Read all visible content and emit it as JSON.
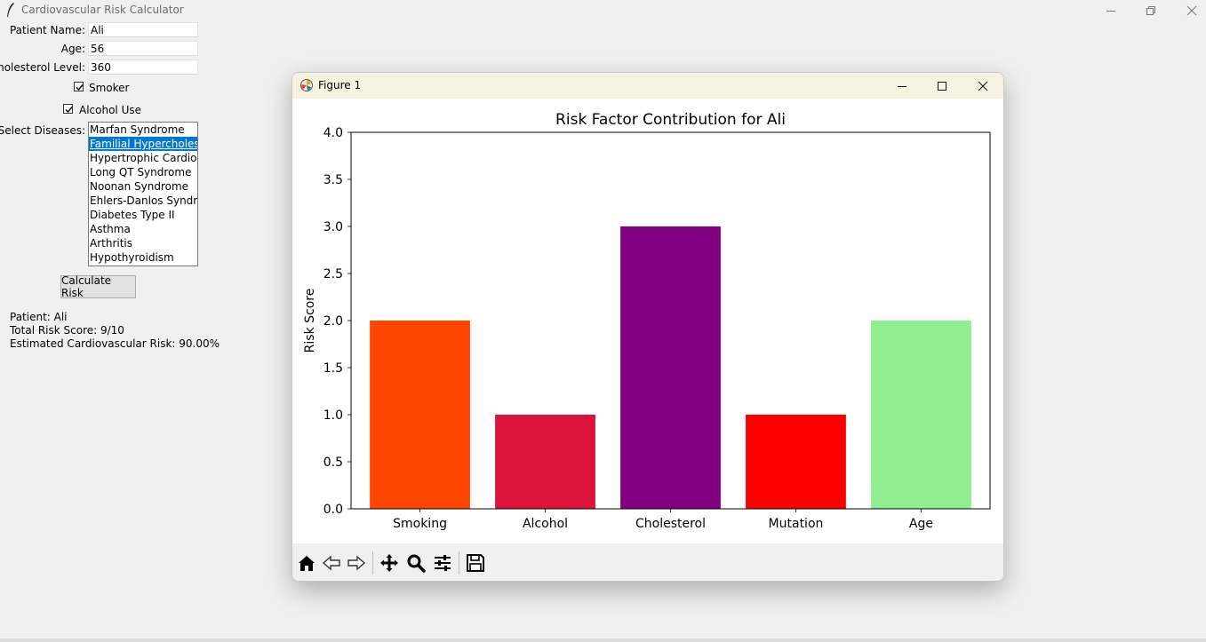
{
  "window": {
    "title": "Cardiovascular Risk Calculator"
  },
  "form": {
    "patient_name_label": "Patient Name:",
    "patient_name_value": "Ali",
    "age_label": "Age:",
    "age_value": "56",
    "cholesterol_label": "Cholesterol Level:",
    "cholesterol_value": "360",
    "smoker_label": "Smoker",
    "smoker_checked": true,
    "alcohol_label": "Alcohol Use",
    "alcohol_checked": true,
    "diseases_label": "Select Diseases:",
    "diseases": [
      "Marfan Syndrome",
      "Familial Hypercholesterolemia",
      "Hypertrophic Cardiomyopathy",
      "Long QT Syndrome",
      "Noonan Syndrome",
      "Ehlers-Danlos Syndrome",
      "Diabetes Type II",
      "Asthma",
      "Arthritis",
      "Hypothyroidism"
    ],
    "selected_disease": "Familial Hypercholesterolemia",
    "calculate_label": "Calculate Risk"
  },
  "results": {
    "patient": "Patient: Ali",
    "total_score": "Total Risk Score: 9/10",
    "estimated_risk": "Estimated Cardiovascular Risk: 90.00%"
  },
  "figure": {
    "title": "Figure 1",
    "toolbar_icons": [
      "home-icon",
      "back-icon",
      "forward-icon",
      "pan-icon",
      "zoom-icon",
      "configure-icon",
      "save-icon"
    ]
  },
  "chart_data": {
    "type": "bar",
    "title": "Risk Factor Contribution for Ali",
    "xlabel": "",
    "ylabel": "Risk Score",
    "categories": [
      "Smoking",
      "Alcohol",
      "Cholesterol",
      "Mutation",
      "Age"
    ],
    "values": [
      2,
      1,
      3,
      1,
      2
    ],
    "colors": [
      "#ff4500",
      "#dc143c",
      "#800080",
      "#ff0000",
      "#90ee90"
    ],
    "ylim": [
      0,
      4
    ],
    "yticks": [
      "0.0",
      "0.5",
      "1.0",
      "1.5",
      "2.0",
      "2.5",
      "3.0",
      "3.5",
      "4.0"
    ],
    "grid": false
  }
}
